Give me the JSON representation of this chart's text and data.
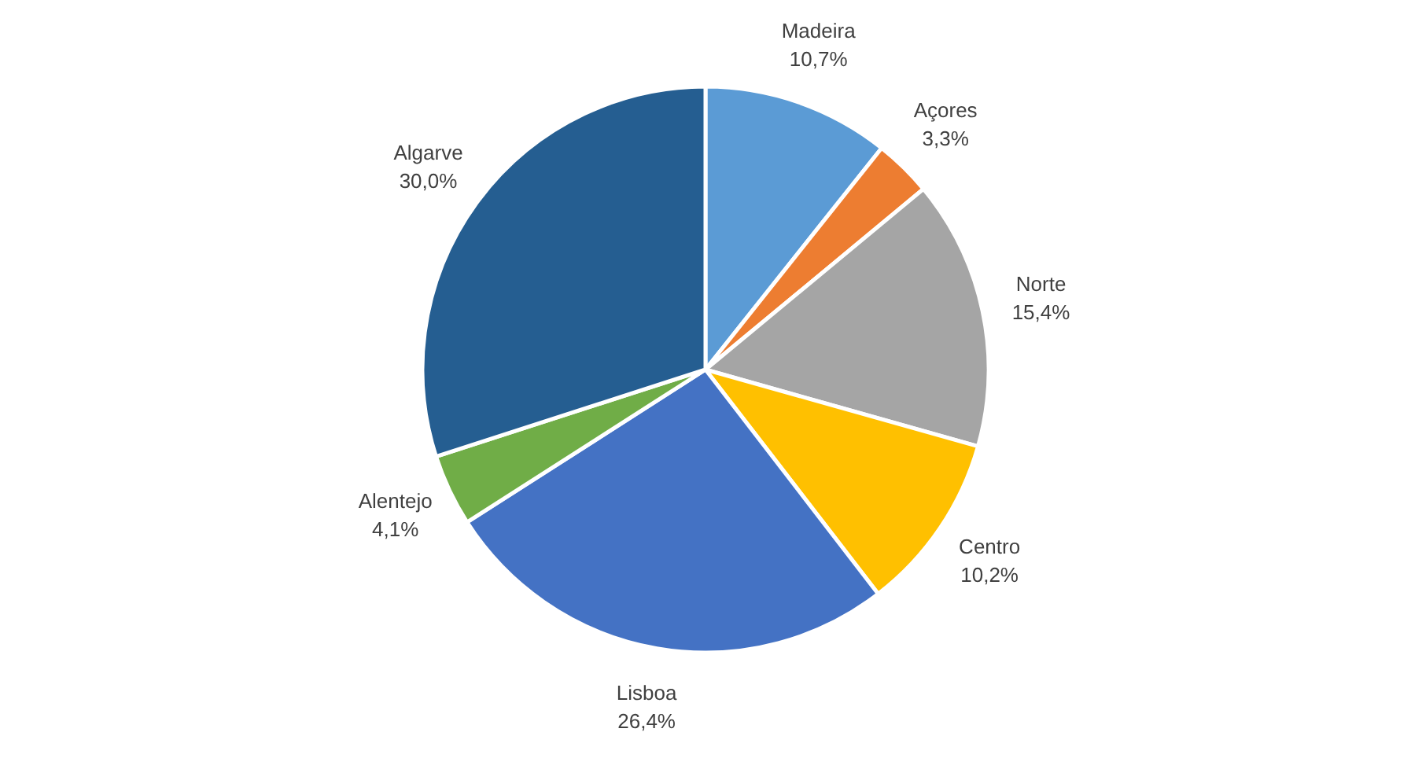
{
  "chart_data": {
    "type": "pie",
    "categories": [
      "Madeira",
      "Açores",
      "Norte",
      "Centro",
      "Lisboa",
      "Alentejo",
      "Algarve"
    ],
    "values": [
      10.7,
      3.3,
      15.4,
      10.2,
      26.4,
      4.1,
      30.0
    ],
    "value_labels": [
      "10,7%",
      "3,3%",
      "15,4%",
      "10,2%",
      "26,4%",
      "4,1%",
      "30,0%"
    ],
    "colors": [
      "#5b9bd5",
      "#ed7d31",
      "#a5a5a5",
      "#ffc000",
      "#4472c4",
      "#70ad47",
      "#255e91"
    ]
  }
}
